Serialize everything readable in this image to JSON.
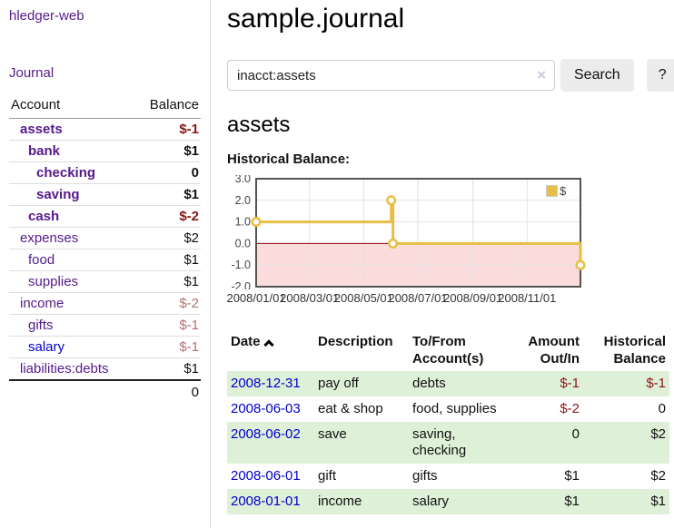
{
  "sidebar": {
    "app_title": "hledger-web",
    "nav": {
      "journal_label": "Journal"
    },
    "accounts_table": {
      "col_account": "Account",
      "col_balance": "Balance",
      "rows": [
        {
          "name": "assets",
          "level": 0,
          "bold": true,
          "blue": false,
          "balance": "$-1",
          "balance_style": "neg-strong"
        },
        {
          "name": "bank",
          "level": 1,
          "bold": true,
          "blue": false,
          "balance": "$1",
          "balance_style": "pos-strong"
        },
        {
          "name": "checking",
          "level": 2,
          "bold": true,
          "blue": false,
          "balance": "0",
          "balance_style": "pos-strong"
        },
        {
          "name": "saving",
          "level": 2,
          "bold": true,
          "blue": false,
          "balance": "$1",
          "balance_style": "pos-strong"
        },
        {
          "name": "cash",
          "level": 1,
          "bold": true,
          "blue": false,
          "balance": "$-2",
          "balance_style": "neg-strong"
        },
        {
          "name": "expenses",
          "level": 0,
          "bold": false,
          "blue": false,
          "balance": "$2",
          "balance_style": "pos"
        },
        {
          "name": "food",
          "level": 1,
          "bold": false,
          "blue": false,
          "balance": "$1",
          "balance_style": "pos"
        },
        {
          "name": "supplies",
          "level": 1,
          "bold": false,
          "blue": false,
          "balance": "$1",
          "balance_style": "pos"
        },
        {
          "name": "income",
          "level": 0,
          "bold": false,
          "blue": false,
          "balance": "$-2",
          "balance_style": "neg-muted"
        },
        {
          "name": "gifts",
          "level": 1,
          "bold": false,
          "blue": false,
          "balance": "$-1",
          "balance_style": "neg-muted"
        },
        {
          "name": "salary",
          "level": 1,
          "bold": false,
          "blue": true,
          "balance": "$-1",
          "balance_style": "neg-muted"
        },
        {
          "name": "liabilities:debts",
          "level": 0,
          "bold": false,
          "blue": false,
          "balance": "$1",
          "balance_style": "pos"
        }
      ],
      "total": "0"
    }
  },
  "header": {
    "title": "sample.journal"
  },
  "search": {
    "query": "inacct:assets",
    "clear_icon": "×",
    "button_label": "Search",
    "help_label": "?"
  },
  "account_page": {
    "heading": "assets",
    "chart_label": "Historical Balance:"
  },
  "chart_data": {
    "type": "line",
    "step": true,
    "title": "Historical Balance",
    "legend_label": "$",
    "legend_position": "top-right",
    "grid": true,
    "ylim": [
      -2,
      3
    ],
    "y_ticks": [
      3.0,
      2.0,
      1.0,
      0.0,
      -1.0,
      -2.0
    ],
    "xlim_days": [
      0,
      365
    ],
    "x_ticks": [
      {
        "x_day": 0,
        "label": "2008/01/01"
      },
      {
        "x_day": 60,
        "label": "2008/03/01"
      },
      {
        "x_day": 121,
        "label": "2008/05/01"
      },
      {
        "x_day": 182,
        "label": "2008/07/01"
      },
      {
        "x_day": 244,
        "label": "2008/09/01"
      },
      {
        "x_day": 305,
        "label": "2008/11/01"
      }
    ],
    "points": [
      {
        "x_day": 0,
        "y": 1
      },
      {
        "x_day": 152,
        "y": 2
      },
      {
        "x_day": 154,
        "y": 0
      },
      {
        "x_day": 365,
        "y": -1
      }
    ],
    "colors": {
      "series": "#e8bf45",
      "marker_fill": "#ffffff",
      "zero_line": "#8b0000",
      "negative_fill": "#fbdcdc",
      "gridline": "#e2e2e2",
      "border": "#545454"
    }
  },
  "register": {
    "headers": {
      "date": "Date",
      "sort_icon": "chevron-up",
      "description": "Description",
      "accounts": "To/From Account(s)",
      "amount": "Amount Out/In",
      "balance": "Historical Balance"
    },
    "rows": [
      {
        "date": "2008-12-31",
        "description": "pay off",
        "accounts": "debts",
        "wrap": false,
        "amount": "$-1",
        "amount_neg": true,
        "balance": "$-1",
        "balance_neg": true,
        "shaded": true
      },
      {
        "date": "2008-06-03",
        "description": "eat & shop",
        "accounts": "food, supplies",
        "wrap": false,
        "amount": "$-2",
        "amount_neg": true,
        "balance": "0",
        "balance_neg": false,
        "shaded": false
      },
      {
        "date": "2008-06-02",
        "description": "save",
        "accounts": "saving, checking",
        "wrap": true,
        "amount": "0",
        "amount_neg": false,
        "balance": "$2",
        "balance_neg": false,
        "shaded": true
      },
      {
        "date": "2008-06-01",
        "description": "gift",
        "accounts": "gifts",
        "wrap": false,
        "amount": "$1",
        "amount_neg": false,
        "balance": "$2",
        "balance_neg": false,
        "shaded": false
      },
      {
        "date": "2008-01-01",
        "description": "income",
        "accounts": "salary",
        "wrap": false,
        "amount": "$1",
        "amount_neg": false,
        "balance": "$1",
        "balance_neg": false,
        "shaded": true
      }
    ]
  }
}
